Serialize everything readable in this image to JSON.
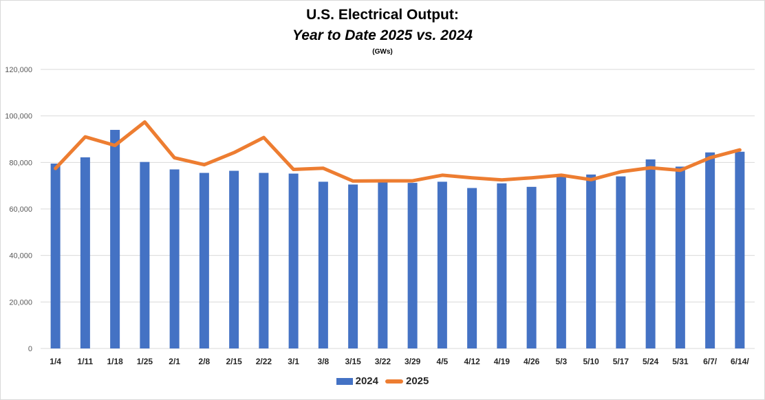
{
  "chart_data": {
    "type": "bar+line",
    "title_line1": "U.S. Electrical Output:",
    "title_line2": "Year to Date 2025 vs. 2024",
    "subtitle": "(GWs)",
    "xlabel": "",
    "ylabel": "",
    "ylim": [
      0,
      120000
    ],
    "yticks": [
      0,
      20000,
      40000,
      60000,
      80000,
      100000,
      120000
    ],
    "ytick_labels": [
      "0",
      "20,000",
      "40,000",
      "60,000",
      "80,000",
      "100,000",
      "120,000"
    ],
    "grid": true,
    "legend_position": "bottom",
    "categories": [
      "1/4",
      "1/11",
      "1/18",
      "1/25",
      "2/1",
      "2/8",
      "2/15",
      "2/22",
      "3/1",
      "3/8",
      "3/15",
      "3/22",
      "3/29",
      "4/5",
      "4/12",
      "4/19",
      "4/26",
      "5/3",
      "5/10",
      "5/17",
      "5/24",
      "5/31",
      "6/7/",
      "6/14/"
    ],
    "series": [
      {
        "name": "2024",
        "type": "bar",
        "color": "#4472c4",
        "values": [
          79500,
          82200,
          94000,
          80200,
          77000,
          75500,
          76400,
          75500,
          75200,
          71700,
          70500,
          71600,
          71200,
          71700,
          69000,
          71000,
          69500,
          74000,
          74800,
          74000,
          81300,
          78200,
          84300,
          84600
        ]
      },
      {
        "name": "2025",
        "type": "line",
        "color": "#ed7d31",
        "values": [
          77400,
          91000,
          87300,
          97400,
          82000,
          79000,
          84200,
          90700,
          77000,
          77500,
          72000,
          72100,
          72100,
          74500,
          73400,
          72500,
          73400,
          74500,
          72600,
          76000,
          77700,
          76600,
          82000,
          85400
        ]
      }
    ]
  }
}
